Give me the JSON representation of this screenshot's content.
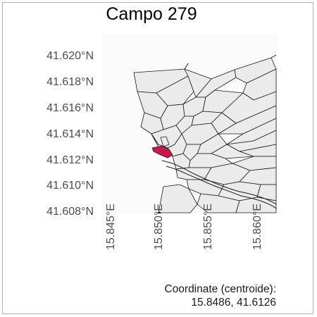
{
  "title": "Campo 279",
  "y_ticks": [
    "41.620°N",
    "41.618°N",
    "41.616°N",
    "41.614°N",
    "41.612°N",
    "41.610°N",
    "41.608°N"
  ],
  "x_ticks": [
    "15.845°E",
    "15.850°E",
    "15.855°E",
    "15.860°E"
  ],
  "coordinate_label": "Coordinate (centroide):",
  "coordinate_value": "15.8486, 41.6126",
  "colors": {
    "highlight": "#c8194a",
    "parcel_fill": "#ebebeb",
    "parcel_stroke": "#1a1a1a",
    "map_bg": "#fbfbfb"
  }
}
